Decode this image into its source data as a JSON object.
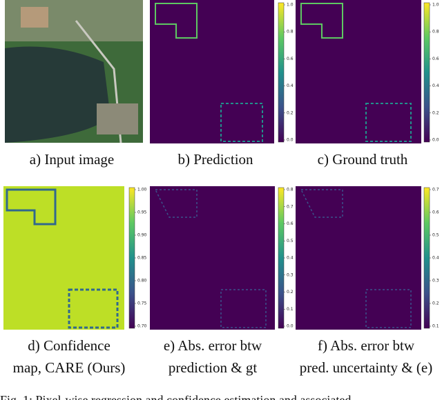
{
  "figure": {
    "panels": [
      {
        "caption": [
          "a) Input image"
        ]
      },
      {
        "caption": [
          "b) Prediction"
        ],
        "colorbar": [
          "1.0",
          "0.8",
          "0.6",
          "0.4",
          "0.2",
          "0.0"
        ]
      },
      {
        "caption": [
          "c) Ground truth"
        ],
        "colorbar": [
          "1.0",
          "0.8",
          "0.6",
          "0.4",
          "0.2",
          "0.0"
        ]
      },
      {
        "caption": [
          "d) Confidence",
          "map, CARE (Ours)"
        ],
        "colorbar": [
          "1.00",
          "0.95",
          "0.90",
          "0.85",
          "0.80",
          "0.75",
          "0.70"
        ]
      },
      {
        "caption": [
          "e) Abs. error btw",
          "prediction & gt"
        ],
        "colorbar": [
          "0.8",
          "0.7",
          "0.6",
          "0.5",
          "0.4",
          "0.3",
          "0.2",
          "0.1",
          "0.0"
        ]
      },
      {
        "caption": [
          "f) Abs. error btw",
          "pred. uncertainty & (e)"
        ],
        "colorbar": [
          "0.7",
          "0.6",
          "0.5",
          "0.4",
          "0.3",
          "0.2",
          "0.1"
        ]
      }
    ],
    "fig_caption": "Fig. 1: Pixel-wise regression and confidence estimation and associated"
  }
}
